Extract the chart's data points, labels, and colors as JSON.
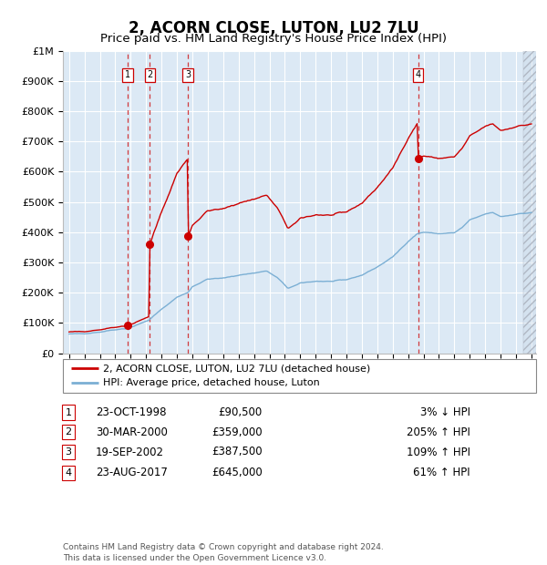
{
  "title": "2, ACORN CLOSE, LUTON, LU2 7LU",
  "subtitle": "Price paid vs. HM Land Registry's House Price Index (HPI)",
  "background_color": "#dce9f5",
  "sale_color": "#cc0000",
  "hpi_color": "#7bafd4",
  "sale_label": "2, ACORN CLOSE, LUTON, LU2 7LU (detached house)",
  "hpi_label": "HPI: Average price, detached house, Luton",
  "sales": [
    {
      "num": 1,
      "date": "23-OCT-1998",
      "price": 90500,
      "pct": "3%",
      "dir": "↓"
    },
    {
      "num": 2,
      "date": "30-MAR-2000",
      "price": 359000,
      "pct": "205%",
      "dir": "↑"
    },
    {
      "num": 3,
      "date": "19-SEP-2002",
      "price": 387500,
      "pct": "109%",
      "dir": "↑"
    },
    {
      "num": 4,
      "date": "23-AUG-2017",
      "price": 645000,
      "pct": "61%",
      "dir": "↑"
    }
  ],
  "sale_years": [
    1998.79,
    2000.24,
    2002.72,
    2017.64
  ],
  "sale_prices": [
    90500,
    359000,
    387500,
    645000
  ],
  "footer": "Contains HM Land Registry data © Crown copyright and database right 2024.\nThis data is licensed under the Open Government Licence v3.0.",
  "ylim": [
    0,
    1000000
  ],
  "yticks": [
    0,
    100000,
    200000,
    300000,
    400000,
    500000,
    600000,
    700000,
    800000,
    900000,
    1000000
  ],
  "ytick_labels": [
    "£0",
    "£100K",
    "£200K",
    "£300K",
    "£400K",
    "£500K",
    "£600K",
    "£700K",
    "£800K",
    "£900K",
    "£1M"
  ],
  "xlim_start": 1994.6,
  "xlim_end": 2025.3,
  "hatch_start": 2024.5
}
